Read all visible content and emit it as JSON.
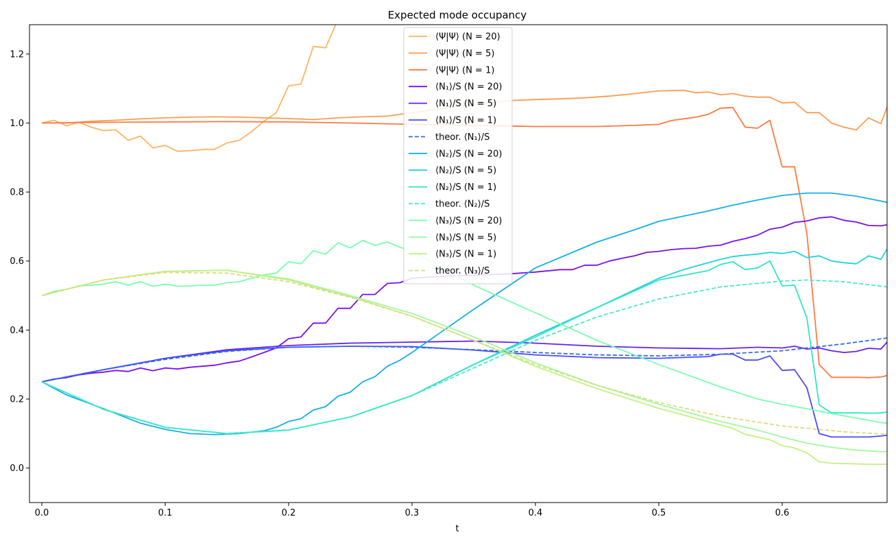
{
  "chart_data": {
    "type": "line",
    "title": "Expected mode occupancy",
    "xlabel": "t",
    "ylabel": "",
    "xlim": [
      -0.01,
      0.685
    ],
    "ylim": [
      -0.1,
      1.285
    ],
    "xticks": [
      0.0,
      0.1,
      0.2,
      0.3,
      0.4,
      0.5,
      0.6
    ],
    "xtick_labels": [
      "0.0",
      "0.1",
      "0.2",
      "0.3",
      "0.4",
      "0.5",
      "0.6"
    ],
    "yticks": [
      0.0,
      0.2,
      0.4,
      0.6,
      0.8,
      1.0,
      1.2
    ],
    "ytick_labels": [
      "0.0",
      "0.2",
      "0.4",
      "0.6",
      "0.8",
      "1.0",
      "1.2"
    ],
    "grid": false,
    "legend_position": "top-center",
    "series": [
      {
        "name": "⟨Ψ|Ψ⟩ (N = 20)",
        "color": "#ffb360",
        "dash": "solid",
        "x": [
          0,
          0.01,
          0.02,
          0.03,
          0.04,
          0.05,
          0.06,
          0.07,
          0.08,
          0.09,
          0.1,
          0.11,
          0.12,
          0.13,
          0.14,
          0.15,
          0.16,
          0.17,
          0.18,
          0.19,
          0.2,
          0.21,
          0.22,
          0.23,
          0.24
        ],
        "y": [
          1.0,
          1.008,
          0.992,
          1.002,
          0.988,
          0.978,
          0.98,
          0.95,
          0.962,
          0.928,
          0.935,
          0.918,
          0.92,
          0.923,
          0.924,
          0.942,
          0.95,
          0.975,
          1.005,
          1.03,
          1.108,
          1.113,
          1.222,
          1.218,
          1.3
        ]
      },
      {
        "name": "⟨Ψ|Ψ⟩ (N = 5)",
        "color": "#ff9a50",
        "dash": "solid",
        "x": [
          0,
          0.02,
          0.04,
          0.06,
          0.08,
          0.1,
          0.12,
          0.14,
          0.16,
          0.18,
          0.2,
          0.22,
          0.24,
          0.26,
          0.28,
          0.3,
          0.32,
          0.34,
          0.36,
          0.38,
          0.4,
          0.42,
          0.44,
          0.46,
          0.48,
          0.5,
          0.52,
          0.53,
          0.54,
          0.55,
          0.56,
          0.57,
          0.58,
          0.59,
          0.6,
          0.61,
          0.62,
          0.63,
          0.64,
          0.65,
          0.66,
          0.67,
          0.68,
          0.685
        ],
        "y": [
          1.0,
          1.0,
          1.005,
          1.008,
          1.012,
          1.015,
          1.017,
          1.018,
          1.017,
          1.015,
          1.013,
          1.01,
          1.015,
          1.018,
          1.02,
          1.03,
          1.04,
          1.05,
          1.058,
          1.065,
          1.068,
          1.07,
          1.073,
          1.078,
          1.085,
          1.093,
          1.095,
          1.088,
          1.09,
          1.082,
          1.085,
          1.078,
          1.075,
          1.075,
          1.058,
          1.06,
          1.03,
          1.03,
          1.0,
          0.988,
          0.98,
          1.015,
          0.998,
          1.047
        ]
      },
      {
        "name": "⟨Ψ|Ψ⟩ (N = 1)",
        "color": "#ff7840",
        "dash": "solid",
        "x": [
          0,
          0.05,
          0.1,
          0.15,
          0.2,
          0.25,
          0.3,
          0.35,
          0.4,
          0.45,
          0.48,
          0.5,
          0.51,
          0.52,
          0.53,
          0.54,
          0.55,
          0.56,
          0.57,
          0.58,
          0.59,
          0.6,
          0.61,
          0.62,
          0.63,
          0.64,
          0.65,
          0.66,
          0.67,
          0.68,
          0.685
        ],
        "y": [
          1.0,
          1.002,
          1.003,
          1.004,
          1.003,
          1.0,
          0.996,
          0.993,
          0.99,
          0.99,
          0.993,
          0.996,
          1.007,
          1.012,
          1.017,
          1.025,
          1.043,
          1.045,
          0.988,
          0.985,
          1.008,
          0.873,
          0.873,
          0.68,
          0.3,
          0.263,
          0.263,
          0.263,
          0.262,
          0.264,
          0.268
        ]
      },
      {
        "name": "⟨N₁⟩/S (N = 20)",
        "color": "#7a0ee8",
        "dash": "solid",
        "x": [
          0,
          0.01,
          0.02,
          0.03,
          0.04,
          0.05,
          0.06,
          0.07,
          0.08,
          0.09,
          0.1,
          0.11,
          0.12,
          0.13,
          0.14,
          0.15,
          0.16,
          0.17,
          0.18,
          0.19,
          0.2,
          0.21,
          0.22,
          0.23,
          0.24,
          0.25,
          0.26,
          0.27,
          0.28,
          0.29,
          0.3,
          0.32,
          0.34,
          0.36,
          0.38,
          0.4,
          0.42,
          0.43,
          0.44,
          0.45,
          0.46,
          0.47,
          0.48,
          0.49,
          0.5,
          0.51,
          0.52,
          0.53,
          0.54,
          0.55,
          0.56,
          0.57,
          0.58,
          0.59,
          0.6,
          0.61,
          0.62,
          0.63,
          0.64,
          0.65,
          0.66,
          0.67,
          0.68,
          0.685
        ],
        "y": [
          0.25,
          0.258,
          0.262,
          0.27,
          0.275,
          0.278,
          0.283,
          0.28,
          0.29,
          0.282,
          0.29,
          0.287,
          0.292,
          0.295,
          0.298,
          0.305,
          0.31,
          0.322,
          0.335,
          0.348,
          0.375,
          0.38,
          0.42,
          0.42,
          0.463,
          0.463,
          0.503,
          0.503,
          0.535,
          0.537,
          0.55,
          0.555,
          0.558,
          0.56,
          0.563,
          0.568,
          0.575,
          0.575,
          0.588,
          0.588,
          0.6,
          0.608,
          0.615,
          0.625,
          0.628,
          0.633,
          0.636,
          0.637,
          0.643,
          0.646,
          0.657,
          0.665,
          0.675,
          0.692,
          0.698,
          0.712,
          0.716,
          0.725,
          0.728,
          0.718,
          0.713,
          0.703,
          0.702,
          0.705
        ]
      },
      {
        "name": "⟨N₁⟩/S (N = 5)",
        "color": "#6520f0",
        "dash": "solid",
        "x": [
          0,
          0.05,
          0.1,
          0.15,
          0.2,
          0.25,
          0.3,
          0.35,
          0.4,
          0.45,
          0.5,
          0.55,
          0.58,
          0.6,
          0.61,
          0.62,
          0.63,
          0.64,
          0.65,
          0.66,
          0.67,
          0.68,
          0.685
        ],
        "y": [
          0.25,
          0.285,
          0.318,
          0.343,
          0.355,
          0.362,
          0.365,
          0.368,
          0.362,
          0.353,
          0.348,
          0.346,
          0.35,
          0.348,
          0.353,
          0.345,
          0.348,
          0.34,
          0.335,
          0.338,
          0.347,
          0.345,
          0.365
        ]
      },
      {
        "name": "⟨N₁⟩/S (N = 1)",
        "color": "#4a48f8",
        "dash": "solid",
        "x": [
          0,
          0.05,
          0.1,
          0.15,
          0.2,
          0.25,
          0.3,
          0.35,
          0.4,
          0.45,
          0.5,
          0.54,
          0.55,
          0.56,
          0.57,
          0.58,
          0.59,
          0.6,
          0.61,
          0.62,
          0.63,
          0.64,
          0.65,
          0.66,
          0.67,
          0.68,
          0.685
        ],
        "y": [
          0.25,
          0.285,
          0.318,
          0.34,
          0.35,
          0.353,
          0.352,
          0.342,
          0.328,
          0.32,
          0.318,
          0.323,
          0.33,
          0.33,
          0.313,
          0.313,
          0.325,
          0.283,
          0.285,
          0.233,
          0.1,
          0.09,
          0.09,
          0.09,
          0.09,
          0.093,
          0.095
        ]
      },
      {
        "name": "theor. ⟨N₁⟩/S",
        "color": "#2e6cf0",
        "dash": "dashed",
        "x": [
          0,
          0.05,
          0.1,
          0.15,
          0.2,
          0.25,
          0.3,
          0.35,
          0.4,
          0.45,
          0.5,
          0.55,
          0.6,
          0.65,
          0.685
        ],
        "y": [
          0.25,
          0.285,
          0.315,
          0.338,
          0.35,
          0.353,
          0.35,
          0.343,
          0.335,
          0.328,
          0.325,
          0.33,
          0.34,
          0.36,
          0.377
        ]
      },
      {
        "name": "⟨N₂⟩/S (N = 20)",
        "color": "#12aee8",
        "dash": "solid",
        "x": [
          0,
          0.02,
          0.05,
          0.08,
          0.1,
          0.12,
          0.14,
          0.16,
          0.18,
          0.19,
          0.2,
          0.21,
          0.22,
          0.23,
          0.24,
          0.25,
          0.26,
          0.27,
          0.28,
          0.29,
          0.3,
          0.35,
          0.4,
          0.45,
          0.48,
          0.5,
          0.52,
          0.54,
          0.56,
          0.58,
          0.6,
          0.62,
          0.64,
          0.66,
          0.68,
          0.685
        ],
        "y": [
          0.25,
          0.212,
          0.172,
          0.13,
          0.112,
          0.1,
          0.097,
          0.1,
          0.108,
          0.118,
          0.135,
          0.143,
          0.168,
          0.178,
          0.208,
          0.22,
          0.25,
          0.265,
          0.295,
          0.312,
          0.335,
          0.46,
          0.58,
          0.655,
          0.69,
          0.715,
          0.73,
          0.745,
          0.762,
          0.777,
          0.79,
          0.797,
          0.797,
          0.788,
          0.774,
          0.77
        ]
      },
      {
        "name": "⟨N₂⟩/S (N = 5)",
        "color": "#1ed2e0",
        "dash": "solid",
        "x": [
          0,
          0.05,
          0.1,
          0.15,
          0.2,
          0.25,
          0.3,
          0.35,
          0.4,
          0.45,
          0.5,
          0.52,
          0.54,
          0.55,
          0.56,
          0.57,
          0.58,
          0.59,
          0.6,
          0.61,
          0.62,
          0.63,
          0.64,
          0.65,
          0.66,
          0.67,
          0.68,
          0.685
        ],
        "y": [
          0.25,
          0.17,
          0.118,
          0.1,
          0.11,
          0.148,
          0.21,
          0.3,
          0.385,
          0.465,
          0.55,
          0.575,
          0.595,
          0.605,
          0.613,
          0.617,
          0.62,
          0.625,
          0.622,
          0.628,
          0.61,
          0.615,
          0.6,
          0.595,
          0.592,
          0.615,
          0.605,
          0.635
        ]
      },
      {
        "name": "⟨N₂⟩/S (N = 1)",
        "color": "#2ee6c8",
        "dash": "solid",
        "x": [
          0,
          0.05,
          0.1,
          0.15,
          0.2,
          0.25,
          0.3,
          0.35,
          0.4,
          0.45,
          0.5,
          0.54,
          0.55,
          0.56,
          0.57,
          0.58,
          0.59,
          0.6,
          0.61,
          0.62,
          0.63,
          0.64,
          0.65,
          0.66,
          0.67,
          0.68,
          0.685
        ],
        "y": [
          0.25,
          0.17,
          0.118,
          0.1,
          0.11,
          0.148,
          0.21,
          0.3,
          0.38,
          0.465,
          0.545,
          0.572,
          0.59,
          0.598,
          0.575,
          0.58,
          0.6,
          0.528,
          0.53,
          0.435,
          0.183,
          0.16,
          0.16,
          0.16,
          0.159,
          0.16,
          0.162
        ]
      },
      {
        "name": "theor. ⟨N₂⟩/S",
        "color": "#48e8c8",
        "dash": "dashed",
        "x": [
          0,
          0.05,
          0.1,
          0.15,
          0.2,
          0.25,
          0.3,
          0.35,
          0.4,
          0.45,
          0.5,
          0.55,
          0.6,
          0.62,
          0.65,
          0.685
        ],
        "y": [
          0.25,
          0.17,
          0.118,
          0.1,
          0.11,
          0.148,
          0.21,
          0.29,
          0.37,
          0.438,
          0.49,
          0.525,
          0.542,
          0.545,
          0.54,
          0.525
        ]
      },
      {
        "name": "⟨N₃⟩/S (N = 20)",
        "color": "#7afcb0",
        "dash": "solid",
        "x": [
          0,
          0.01,
          0.02,
          0.03,
          0.04,
          0.05,
          0.06,
          0.07,
          0.08,
          0.09,
          0.1,
          0.11,
          0.12,
          0.13,
          0.14,
          0.15,
          0.16,
          0.17,
          0.18,
          0.19,
          0.2,
          0.21,
          0.22,
          0.23,
          0.24,
          0.25,
          0.26,
          0.27,
          0.28,
          0.29,
          0.3,
          0.35,
          0.4,
          0.45,
          0.5,
          0.55,
          0.58,
          0.6,
          0.62,
          0.64,
          0.66,
          0.68,
          0.685
        ],
        "y": [
          0.5,
          0.512,
          0.518,
          0.528,
          0.53,
          0.533,
          0.54,
          0.53,
          0.54,
          0.527,
          0.533,
          0.527,
          0.528,
          0.53,
          0.53,
          0.537,
          0.54,
          0.55,
          0.56,
          0.565,
          0.598,
          0.592,
          0.63,
          0.62,
          0.653,
          0.638,
          0.66,
          0.645,
          0.655,
          0.64,
          0.63,
          0.53,
          0.45,
          0.37,
          0.3,
          0.235,
          0.2,
          0.185,
          0.172,
          0.158,
          0.145,
          0.132,
          0.13
        ]
      },
      {
        "name": "⟨N₃⟩/S (N = 5)",
        "color": "#a0f8a0",
        "dash": "solid",
        "x": [
          0,
          0.05,
          0.1,
          0.15,
          0.2,
          0.25,
          0.3,
          0.35,
          0.4,
          0.45,
          0.5,
          0.55,
          0.58,
          0.6,
          0.62,
          0.64,
          0.66,
          0.68,
          0.685
        ],
        "y": [
          0.5,
          0.545,
          0.57,
          0.573,
          0.548,
          0.5,
          0.448,
          0.38,
          0.305,
          0.24,
          0.185,
          0.135,
          0.11,
          0.09,
          0.072,
          0.06,
          0.052,
          0.047,
          0.048
        ]
      },
      {
        "name": "⟨N₃⟩/S (N = 1)",
        "color": "#c4f080",
        "dash": "solid",
        "x": [
          0,
          0.05,
          0.1,
          0.15,
          0.2,
          0.25,
          0.3,
          0.35,
          0.4,
          0.45,
          0.5,
          0.55,
          0.56,
          0.57,
          0.58,
          0.59,
          0.6,
          0.61,
          0.62,
          0.63,
          0.64,
          0.65,
          0.66,
          0.67,
          0.68,
          0.685
        ],
        "y": [
          0.5,
          0.545,
          0.57,
          0.573,
          0.545,
          0.497,
          0.44,
          0.37,
          0.295,
          0.23,
          0.173,
          0.125,
          0.115,
          0.098,
          0.09,
          0.082,
          0.065,
          0.058,
          0.044,
          0.018,
          0.014,
          0.013,
          0.012,
          0.011,
          0.011,
          0.011
        ]
      },
      {
        "name": "theor. ⟨N₃⟩/S",
        "color": "#d8dc80",
        "dash": "dashed",
        "x": [
          0,
          0.05,
          0.1,
          0.15,
          0.2,
          0.25,
          0.3,
          0.35,
          0.4,
          0.45,
          0.5,
          0.55,
          0.6,
          0.65,
          0.685
        ],
        "y": [
          0.5,
          0.545,
          0.567,
          0.565,
          0.54,
          0.495,
          0.44,
          0.37,
          0.3,
          0.24,
          0.19,
          0.15,
          0.122,
          0.105,
          0.098
        ]
      }
    ]
  }
}
